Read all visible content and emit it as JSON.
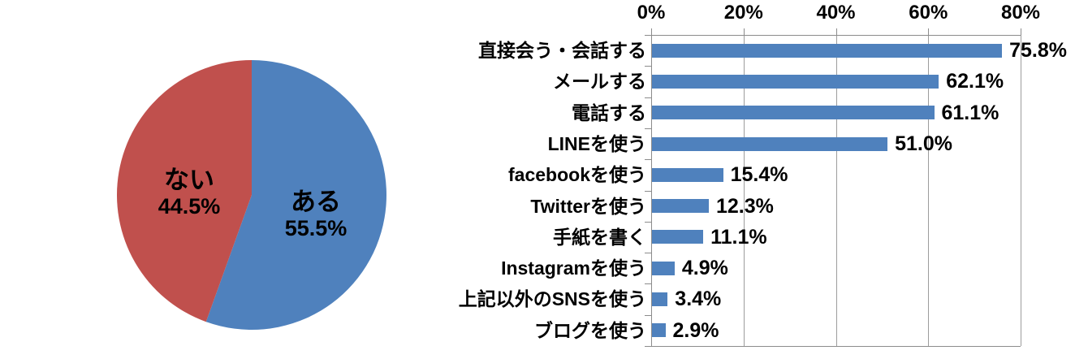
{
  "figure": {
    "background": "#ffffff",
    "text_color": "#000000"
  },
  "chart_data": [
    {
      "type": "pie",
      "title": "",
      "start_angle_deg": 0,
      "direction": "clockwise",
      "slices": [
        {
          "label": "ある",
          "value": 55.5,
          "display": "55.5%",
          "color": "#4F81BD"
        },
        {
          "label": "ない",
          "value": 44.5,
          "display": "44.5%",
          "color": "#C0504D"
        }
      ],
      "label_color": "#000000",
      "legend": "none"
    },
    {
      "type": "bar",
      "orientation": "horizontal",
      "title": "",
      "xlabel": "",
      "ylabel": "",
      "xlim": [
        0,
        80
      ],
      "grid": true,
      "categories": [
        "直接会う・会話する",
        "メールする",
        "電話する",
        "LINEを使う",
        "facebookを使う",
        "Twitterを使う",
        "手紙を書く",
        "Instagramを使う",
        "上記以外のSNSを使う",
        "ブログを使う"
      ],
      "values": [
        75.8,
        62.1,
        61.1,
        51.0,
        15.4,
        12.3,
        11.1,
        4.9,
        3.4,
        2.9
      ],
      "value_labels": [
        "75.8%",
        "62.1%",
        "61.1%",
        "51.0%",
        "15.4%",
        "12.3%",
        "11.1%",
        "4.9%",
        "3.4%",
        "2.9%"
      ],
      "x_ticks": [
        "0%",
        "20%",
        "40%",
        "60%",
        "80%"
      ],
      "x_tick_values": [
        0,
        20,
        40,
        60,
        80
      ],
      "bar_color": "#4F81BD",
      "gridline_color": "#9d9d9d",
      "axis_color": "#8c8c8c"
    }
  ]
}
